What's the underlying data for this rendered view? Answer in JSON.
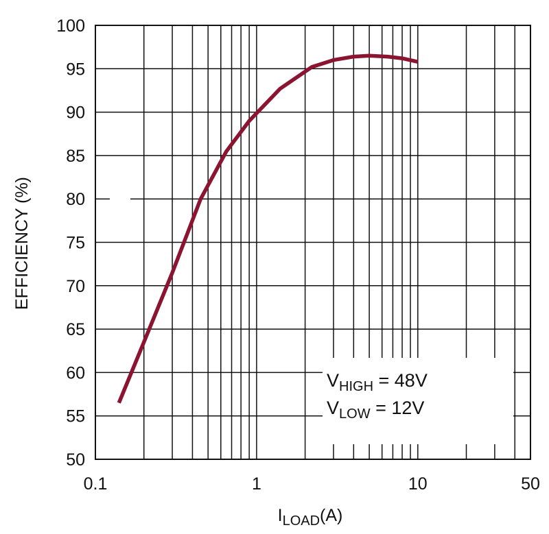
{
  "chart_data": {
    "type": "line",
    "x_scale": "log",
    "xlim": [
      0.1,
      50
    ],
    "ylim": [
      50,
      100
    ],
    "x_ticks": [
      0.1,
      1,
      10,
      50
    ],
    "x_tick_labels": [
      "0.1",
      "1",
      "10",
      "50"
    ],
    "y_ticks": [
      50,
      55,
      60,
      65,
      70,
      75,
      80,
      85,
      90,
      95,
      100
    ],
    "y_tick_labels": [
      "50",
      "55",
      "60",
      "65",
      "70",
      "75",
      "80",
      "85",
      "90",
      "95",
      "100"
    ],
    "xlabel": {
      "main": "I",
      "sub": "LOAD",
      "suffix": "(A)"
    },
    "ylabel": "EFFICIENCY (%)",
    "grid": true,
    "series": [
      {
        "name": "Efficiency",
        "color": "#8b1530",
        "x": [
          0.14,
          0.2,
          0.3,
          0.45,
          0.65,
          0.9,
          1.4,
          2.2,
          3.0,
          4.0,
          5.0,
          6.5,
          8.0,
          10.0
        ],
        "y": [
          56.5,
          63.5,
          71.5,
          80.0,
          85.5,
          89.0,
          92.7,
          95.2,
          96.0,
          96.4,
          96.5,
          96.4,
          96.2,
          95.8
        ]
      }
    ],
    "annotations": [
      {
        "main": "V",
        "sub": "HIGH",
        "rest": " = 48V"
      },
      {
        "main": "V",
        "sub": "LOW",
        "rest": " = 12V"
      }
    ],
    "legend_position": "bottom-right"
  }
}
